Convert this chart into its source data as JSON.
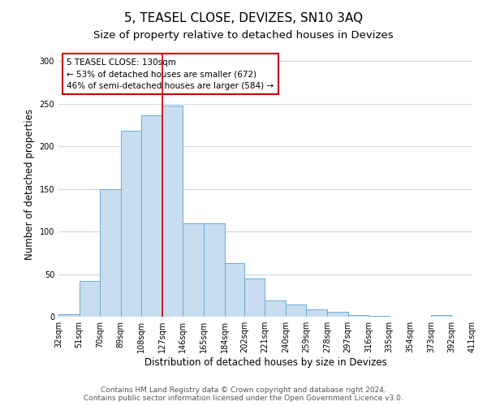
{
  "title": "5, TEASEL CLOSE, DEVIZES, SN10 3AQ",
  "subtitle": "Size of property relative to detached houses in Devizes",
  "xlabel": "Distribution of detached houses by size in Devizes",
  "ylabel": "Number of detached properties",
  "bar_color": "#c8ddef",
  "bar_edge_color": "#6aaad4",
  "bar_left_edges": [
    32,
    51,
    70,
    89,
    108,
    127,
    146,
    165,
    184,
    202,
    221,
    240,
    259,
    278,
    297,
    316,
    335,
    354,
    373,
    392
  ],
  "bar_widths": [
    19,
    19,
    19,
    19,
    19,
    19,
    19,
    19,
    18,
    19,
    19,
    19,
    19,
    19,
    19,
    19,
    19,
    19,
    19,
    19
  ],
  "bar_heights": [
    3,
    42,
    150,
    218,
    237,
    248,
    110,
    110,
    63,
    45,
    19,
    14,
    9,
    6,
    2,
    1,
    0,
    0,
    2,
    0
  ],
  "xlim_left": 32,
  "xlim_right": 411,
  "ylim_top": 310,
  "ylim_bottom": 0,
  "yticks": [
    0,
    50,
    100,
    150,
    200,
    250,
    300
  ],
  "xtick_labels": [
    "32sqm",
    "51sqm",
    "70sqm",
    "89sqm",
    "108sqm",
    "127sqm",
    "146sqm",
    "165sqm",
    "184sqm",
    "202sqm",
    "221sqm",
    "240sqm",
    "259sqm",
    "278sqm",
    "297sqm",
    "316sqm",
    "335sqm",
    "354sqm",
    "373sqm",
    "392sqm",
    "411sqm"
  ],
  "xtick_positions": [
    32,
    51,
    70,
    89,
    108,
    127,
    146,
    165,
    184,
    202,
    221,
    240,
    259,
    278,
    297,
    316,
    335,
    354,
    373,
    392,
    411
  ],
  "property_line_x": 127,
  "property_line_color": "#cc0000",
  "annotation_text": "5 TEASEL CLOSE: 130sqm\n← 53% of detached houses are smaller (672)\n46% of semi-detached houses are larger (584) →",
  "annotation_box_color": "#ffffff",
  "annotation_box_edge_color": "#cc0000",
  "footer_line1": "Contains HM Land Registry data © Crown copyright and database right 2024.",
  "footer_line2": "Contains public sector information licensed under the Open Government Licence v3.0.",
  "background_color": "#ffffff",
  "grid_color": "#ccd9e8",
  "title_fontsize": 11,
  "subtitle_fontsize": 9.5,
  "axis_label_fontsize": 8.5,
  "tick_fontsize": 7,
  "annotation_fontsize": 7.5,
  "footer_fontsize": 6.5
}
